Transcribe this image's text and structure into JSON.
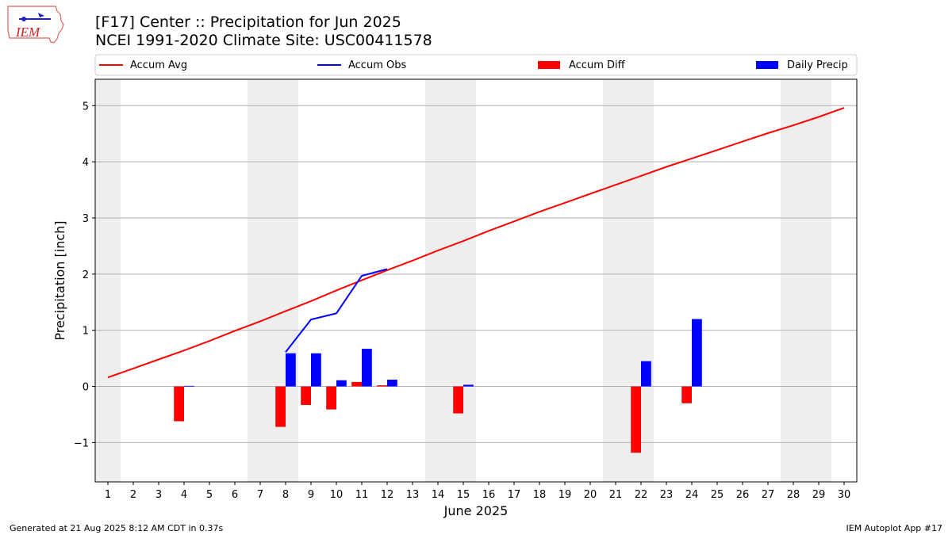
{
  "header": {
    "logo_text": "IEM",
    "title_line1": "[F17] Center :: Precipitation for Jun 2025",
    "title_line2": "NCEI 1991-2020 Climate Site: USC00411578"
  },
  "legend": [
    {
      "label": "Accum Avg",
      "kind": "line",
      "color": "#ff0000"
    },
    {
      "label": "Accum Obs",
      "kind": "line",
      "color": "#0000ff"
    },
    {
      "label": "Accum Diff",
      "kind": "bar",
      "color": "#ff0000"
    },
    {
      "label": "Daily Precip",
      "kind": "bar",
      "color": "#0000ff"
    }
  ],
  "footer": {
    "left": "Generated at 21 Aug 2025 8:12 AM CDT in 0.37s",
    "right": "IEM Autoplot App #17"
  },
  "chart_data": {
    "type": "bar",
    "xlabel": "June 2025",
    "ylabel": "Precipitation [inch]",
    "xlim": [
      0.5,
      30.5
    ],
    "ylim": [
      -1.7,
      5.47
    ],
    "yticks": [
      -1,
      0,
      1,
      2,
      3,
      4,
      5
    ],
    "ytick_labels": [
      "−1",
      "0",
      "1",
      "2",
      "3",
      "4",
      "5"
    ],
    "grid": "horizontal",
    "legend_position": "top",
    "weekend_shading": {
      "color": "#eeeeee",
      "ranges": [
        [
          0.5,
          1.5
        ],
        [
          6.5,
          8.5
        ],
        [
          13.5,
          15.5
        ],
        [
          20.5,
          22.5
        ],
        [
          27.5,
          29.5
        ]
      ]
    },
    "days": [
      1,
      2,
      3,
      4,
      5,
      6,
      7,
      8,
      9,
      10,
      11,
      12,
      13,
      14,
      15,
      16,
      17,
      18,
      19,
      20,
      21,
      22,
      23,
      24,
      25,
      26,
      27,
      28,
      29,
      30
    ],
    "series": [
      {
        "name": "Accum Avg",
        "kind": "line",
        "color": "#ff0000",
        "values": [
          0.16,
          0.32,
          0.48,
          0.64,
          0.81,
          0.99,
          1.16,
          1.34,
          1.52,
          1.71,
          1.89,
          2.07,
          2.24,
          2.42,
          2.59,
          2.77,
          2.94,
          3.11,
          3.27,
          3.43,
          3.59,
          3.75,
          3.91,
          4.06,
          4.21,
          4.36,
          4.51,
          4.65,
          4.8,
          4.96
        ]
      },
      {
        "name": "Accum Obs",
        "kind": "line",
        "color": "#0000ff",
        "values": [
          null,
          null,
          null,
          null,
          null,
          null,
          null,
          0.61,
          1.19,
          1.3,
          1.97,
          2.09,
          null,
          null,
          null,
          null,
          null,
          null,
          null,
          null,
          null,
          null,
          null,
          null,
          null,
          null,
          null,
          null,
          null,
          null
        ]
      },
      {
        "name": "Accum Diff",
        "kind": "bar",
        "color": "#ff0000",
        "values": [
          null,
          null,
          null,
          -0.62,
          null,
          null,
          null,
          -0.72,
          -0.33,
          -0.41,
          0.08,
          0.02,
          null,
          null,
          -0.48,
          null,
          null,
          null,
          null,
          null,
          null,
          -1.18,
          null,
          -0.3,
          null,
          null,
          null,
          null,
          null,
          null
        ]
      },
      {
        "name": "Daily Precip",
        "kind": "bar",
        "color": "#0000ff",
        "values": [
          null,
          null,
          null,
          0.01,
          null,
          null,
          null,
          0.59,
          0.59,
          0.11,
          0.67,
          0.12,
          null,
          null,
          0.03,
          null,
          null,
          null,
          null,
          null,
          null,
          0.45,
          null,
          1.2,
          null,
          null,
          null,
          null,
          null,
          null
        ]
      }
    ]
  }
}
